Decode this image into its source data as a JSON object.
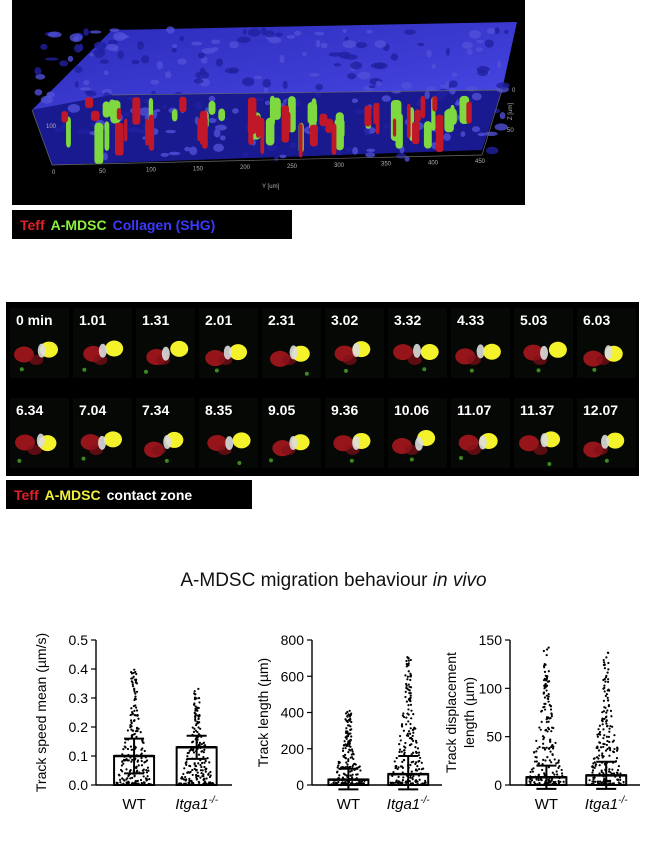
{
  "render3d": {
    "y_axis_title": "Y [um]",
    "z_axis_title": "Z [um]",
    "y_ticks": [
      "0",
      "50",
      "100",
      "150",
      "200",
      "250",
      "300",
      "350",
      "400",
      "450"
    ],
    "z_ticks": [
      "0",
      "50"
    ],
    "left_tick": "100"
  },
  "legend_top": {
    "items": [
      {
        "text": "Teff",
        "color": "#e0202a"
      },
      {
        "text": "A-MDSC",
        "color": "#8cf03c"
      },
      {
        "text": "Collagen (SHG)",
        "color": "#3a3aff"
      }
    ]
  },
  "timelapse": {
    "row1": [
      "0 min",
      "1.01",
      "1.31",
      "2.01",
      "2.31",
      "3.02",
      "3.32",
      "4.33",
      "5.03",
      "6.03"
    ],
    "row2": [
      "6.34",
      "7.04",
      "7.34",
      "8.35",
      "9.05",
      "9.36",
      "10.06",
      "11.07",
      "11.37",
      "12.07"
    ]
  },
  "legend_bottom": {
    "items": [
      {
        "text": "Teff",
        "color": "#e0202a"
      },
      {
        "text": "A-MDSC",
        "color": "#f0f040"
      },
      {
        "text": "contact zone",
        "color": "#ffffff"
      }
    ]
  },
  "figure_title": {
    "prefix": "A-MDSC migration behaviour ",
    "italic": "in vivo"
  },
  "chart_data": [
    {
      "type": "bar",
      "categories": [
        "WT",
        "Itga1-/-"
      ],
      "values": [
        0.1,
        0.13
      ],
      "error": [
        0.06,
        0.04
      ],
      "ylabel": "Track speed mean (µm/s)",
      "ylim": [
        0,
        0.5
      ],
      "yticks": [
        "0.0",
        "0.1",
        "0.2",
        "0.3",
        "0.4",
        "0.5"
      ],
      "points_max": [
        0.4,
        0.34
      ]
    },
    {
      "type": "bar",
      "categories": [
        "WT",
        "Itga1-/-"
      ],
      "values": [
        30,
        60
      ],
      "error": [
        60,
        100
      ],
      "ylabel": "Track length (µm)",
      "ylim": [
        0,
        800
      ],
      "yticks": [
        "0",
        "200",
        "400",
        "600",
        "800"
      ],
      "points_max": [
        410,
        710
      ]
    },
    {
      "type": "bar",
      "categories": [
        "WT",
        "Itga1-/-"
      ],
      "values": [
        8,
        10
      ],
      "error": [
        12,
        14
      ],
      "ylabel": "Track displacement length (µm)",
      "ylim": [
        0,
        150
      ],
      "yticks": [
        "0",
        "50",
        "100",
        "150"
      ],
      "points_max": [
        145,
        137
      ]
    }
  ]
}
